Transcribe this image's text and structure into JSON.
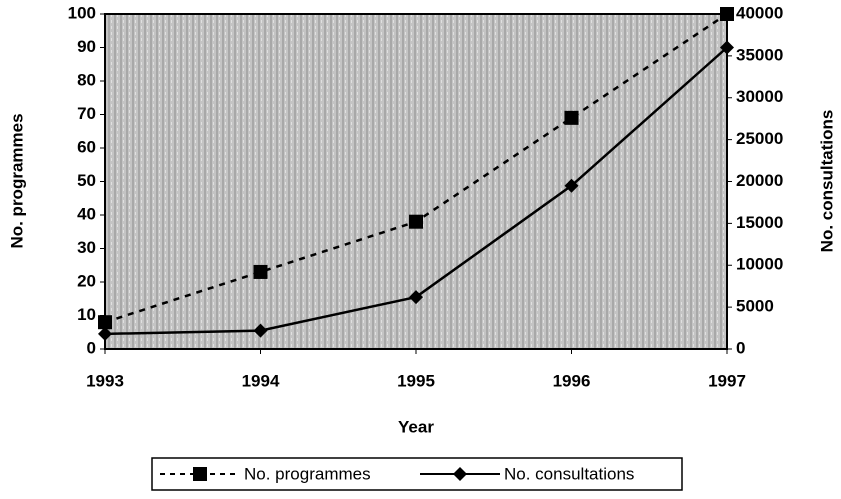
{
  "chart_data": {
    "type": "line",
    "x": [
      1993,
      1994,
      1995,
      1996,
      1997
    ],
    "xlim": [
      1993,
      1997
    ],
    "xticks": [
      1993,
      1994,
      1995,
      1996,
      1997
    ],
    "xlabel": "Year",
    "ylabel": "No. programmes",
    "y2label": "No. consultations",
    "ylim": [
      0,
      100
    ],
    "yticks": [
      0,
      10,
      20,
      30,
      40,
      50,
      60,
      70,
      80,
      90,
      100
    ],
    "y2lim": [
      0,
      40000
    ],
    "y2ticks": [
      0,
      5000,
      10000,
      15000,
      20000,
      25000,
      30000,
      35000,
      40000
    ],
    "series": [
      {
        "name": "No. programmes",
        "color": "#000000",
        "values": [
          8,
          23,
          38,
          69,
          100
        ]
      },
      {
        "name": "No. consultations",
        "color": "#000000",
        "axis": "y2",
        "values": [
          1800,
          2200,
          6200,
          19500,
          36000
        ]
      }
    ]
  }
}
